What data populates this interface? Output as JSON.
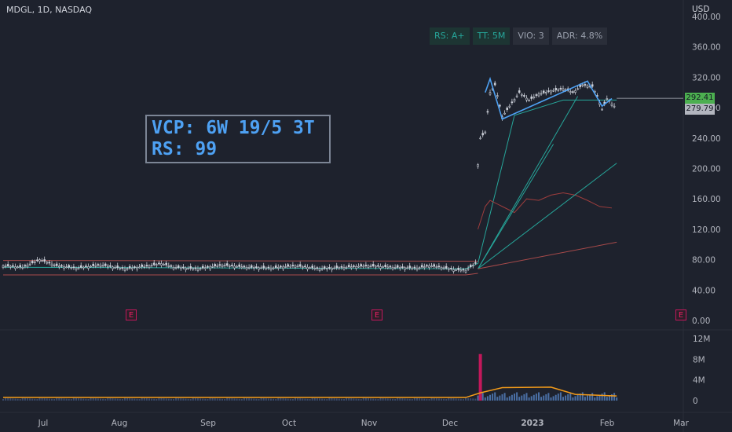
{
  "header": {
    "symbol_line": "MDGL, 1D, NASDAQ"
  },
  "currency": "USD",
  "badges": [
    {
      "label": "RS: A+",
      "color": "#26a69a",
      "bg": "#1d3533"
    },
    {
      "label": "TT: 5M",
      "color": "#26a69a",
      "bg": "#1d3533"
    },
    {
      "label": "VIO: 3",
      "color": "#9aa0ad",
      "bg": "#2a2e39"
    },
    {
      "label": "ADR: 4.8%",
      "color": "#9aa0ad",
      "bg": "#2a2e39"
    }
  ],
  "info_box": {
    "line1": "VCP: 6W 19/5 3T",
    "line2": "RS: 99"
  },
  "earnings_marker": {
    "label": "E"
  },
  "last_price": {
    "value": "292.41",
    "bg": "#4caf50"
  },
  "second_price": {
    "value": "279.79",
    "bg": "#b2b5be"
  },
  "chart_data": {
    "type": "candlestick",
    "price_axis": {
      "ylim": [
        0,
        400
      ],
      "ticks": [
        "400.00",
        "360.00",
        "320.00",
        "280.00",
        "240.00",
        "200.00",
        "160.00",
        "120.00",
        "80.00",
        "40.00",
        "0.00"
      ]
    },
    "volume_axis": {
      "ylim": [
        0,
        14
      ],
      "unit": "M",
      "ticks": [
        "12M",
        "8M",
        "4M",
        "0"
      ]
    },
    "x_tick_labels": [
      "Jul",
      "Aug",
      "Sep",
      "Oct",
      "Nov",
      "Dec",
      "2023",
      "Feb",
      "Mar"
    ],
    "price_path": [
      {
        "t": 0,
        "close": 72
      },
      {
        "t": 8,
        "close": 70
      },
      {
        "t": 15,
        "close": 80
      },
      {
        "t": 22,
        "close": 72
      },
      {
        "t": 30,
        "close": 69
      },
      {
        "t": 40,
        "close": 73
      },
      {
        "t": 50,
        "close": 68
      },
      {
        "t": 60,
        "close": 72
      },
      {
        "t": 65,
        "close": 75
      },
      {
        "t": 70,
        "close": 70
      },
      {
        "t": 80,
        "close": 68
      },
      {
        "t": 90,
        "close": 73
      },
      {
        "t": 100,
        "close": 70
      },
      {
        "t": 110,
        "close": 69
      },
      {
        "t": 120,
        "close": 72
      },
      {
        "t": 130,
        "close": 68
      },
      {
        "t": 140,
        "close": 70
      },
      {
        "t": 150,
        "close": 72
      },
      {
        "t": 160,
        "close": 70
      },
      {
        "t": 170,
        "close": 69
      },
      {
        "t": 175,
        "close": 72
      },
      {
        "t": 180,
        "close": 70
      },
      {
        "t": 185,
        "close": 67
      },
      {
        "t": 190,
        "close": 66
      },
      {
        "t": 194,
        "close": 75
      },
      {
        "t": 195,
        "close": 205
      },
      {
        "t": 196,
        "close": 240
      },
      {
        "t": 198,
        "close": 248
      },
      {
        "t": 200,
        "close": 300
      },
      {
        "t": 202,
        "close": 310
      },
      {
        "t": 205,
        "close": 268
      },
      {
        "t": 208,
        "close": 282
      },
      {
        "t": 212,
        "close": 300
      },
      {
        "t": 216,
        "close": 290
      },
      {
        "t": 220,
        "close": 298
      },
      {
        "t": 225,
        "close": 302
      },
      {
        "t": 230,
        "close": 305
      },
      {
        "t": 234,
        "close": 300
      },
      {
        "t": 238,
        "close": 310
      },
      {
        "t": 242,
        "close": 308
      },
      {
        "t": 244,
        "close": 295
      },
      {
        "t": 246,
        "close": 278
      },
      {
        "t": 248,
        "close": 292
      },
      {
        "t": 250,
        "close": 285
      },
      {
        "t": 252,
        "close": 279
      }
    ],
    "ma_upper": {
      "color": "#a84a4a",
      "path": [
        [
          0,
          79
        ],
        [
          190,
          78
        ],
        [
          195,
          78
        ]
      ]
    },
    "ma_lower": {
      "color": "#a84a4a",
      "path": [
        [
          0,
          60
        ],
        [
          190,
          60
        ],
        [
          195,
          62
        ]
      ]
    },
    "ma_fast": {
      "color": "#26a69a",
      "path": [
        [
          0,
          70
        ],
        [
          100,
          69
        ],
        [
          190,
          68
        ],
        [
          195,
          75
        ],
        [
          210,
          270
        ],
        [
          230,
          290
        ],
        [
          252,
          290
        ]
      ]
    },
    "rs_line": {
      "color": "#9e3d3d",
      "path": [
        [
          195,
          120
        ],
        [
          198,
          150
        ],
        [
          200,
          158
        ],
        [
          205,
          150
        ],
        [
          210,
          142
        ],
        [
          215,
          160
        ],
        [
          220,
          158
        ],
        [
          225,
          165
        ],
        [
          230,
          168
        ],
        [
          235,
          165
        ],
        [
          240,
          158
        ],
        [
          245,
          150
        ],
        [
          250,
          148
        ]
      ]
    },
    "fan_lines": [
      {
        "color": "#26a69a",
        "from": [
          195,
          68
        ],
        "to": [
          236,
          295
        ]
      },
      {
        "color": "#26a69a",
        "from": [
          195,
          68
        ],
        "to": [
          226,
          232
        ]
      },
      {
        "color": "#26a69a",
        "from": [
          195,
          68
        ],
        "to": [
          252,
          207
        ]
      },
      {
        "color": "#a84a4a",
        "from": [
          195,
          68
        ],
        "to": [
          252,
          103
        ]
      }
    ],
    "volume_spike": {
      "t": 196,
      "value": 9
    }
  }
}
